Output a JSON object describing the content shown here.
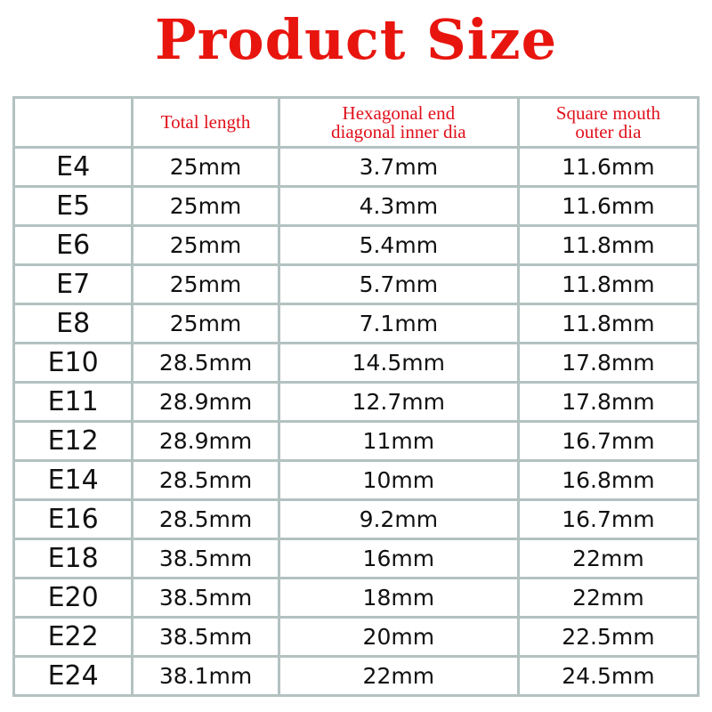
{
  "title": "Product Size",
  "colors": {
    "title": "#e8150f",
    "header_text": "#e0101a",
    "grid": "#b3c2c0"
  },
  "table": {
    "headers": [
      "",
      "Total length",
      "Hexagonal end diagonal inner dia",
      "Square mouth outer dia"
    ],
    "rows": [
      [
        "E4",
        "25mm",
        "3.7mm",
        "11.6mm"
      ],
      [
        "E5",
        "25mm",
        "4.3mm",
        "11.6mm"
      ],
      [
        "E6",
        "25mm",
        "5.4mm",
        "11.8mm"
      ],
      [
        "E7",
        "25mm",
        "5.7mm",
        "11.8mm"
      ],
      [
        "E8",
        "25mm",
        "7.1mm",
        "11.8mm"
      ],
      [
        "E10",
        "28.5mm",
        "14.5mm",
        "17.8mm"
      ],
      [
        "E11",
        "28.9mm",
        "12.7mm",
        "17.8mm"
      ],
      [
        "E12",
        "28.9mm",
        "11mm",
        "16.7mm"
      ],
      [
        "E14",
        "28.5mm",
        "10mm",
        "16.8mm"
      ],
      [
        "E16",
        "28.5mm",
        "9.2mm",
        "16.7mm"
      ],
      [
        "E18",
        "38.5mm",
        "16mm",
        "22mm"
      ],
      [
        "E20",
        "38.5mm",
        "18mm",
        "22mm"
      ],
      [
        "E22",
        "38.5mm",
        "20mm",
        "22.5mm"
      ],
      [
        "E24",
        "38.1mm",
        "22mm",
        "24.5mm"
      ]
    ]
  }
}
